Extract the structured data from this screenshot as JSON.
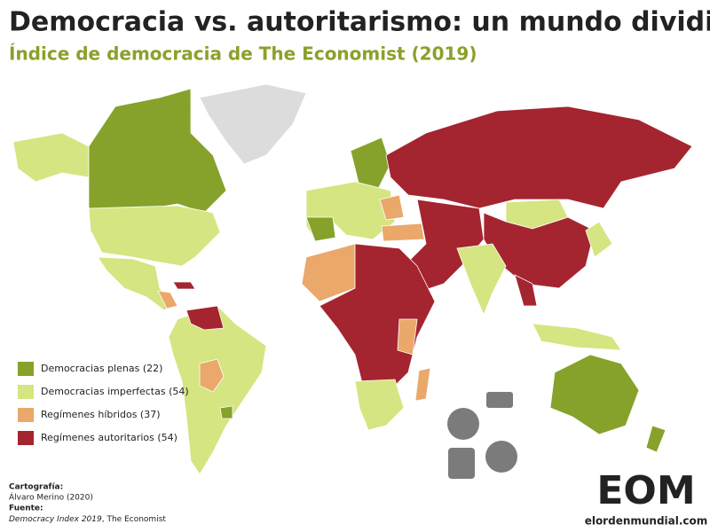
{
  "header": {
    "title": "Democracia vs. autoritarismo: un mundo dividido",
    "subtitle": "Índice de democracia de The Economist (2019)"
  },
  "legend": [
    {
      "label": "Democracias plenas (22)",
      "color": "#86a22a"
    },
    {
      "label": "Democracias imperfectas (54)",
      "color": "#d5e581"
    },
    {
      "label": "Regímenes híbridos (37)",
      "color": "#eaa86a"
    },
    {
      "label": "Regímenes autoritarios (54)",
      "color": "#a42530"
    }
  ],
  "credits": {
    "cartography_label": "Cartografía:",
    "cartography": "Álvaro Merino (2020)",
    "source_label": "Fuente:",
    "source_title": "Democracy Index 2019",
    "source_rest": ", The Economist"
  },
  "logo": {
    "mark": "EOM",
    "url": "elordenmundial.com"
  }
}
